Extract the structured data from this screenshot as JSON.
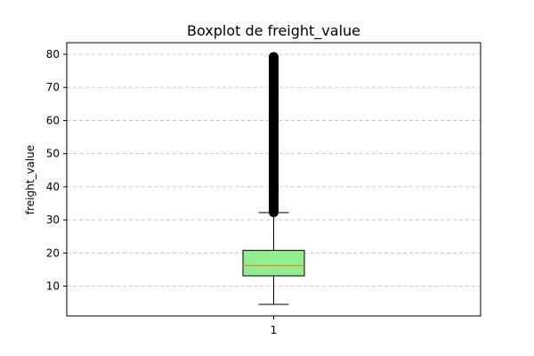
{
  "chart_data": {
    "type": "boxplot",
    "title": "Boxplot de freight_value",
    "xlabel": "",
    "ylabel": "freight_value",
    "categories": [
      "1"
    ],
    "ylim": [
      1.0,
      83.5
    ],
    "yticks": [
      10,
      20,
      30,
      40,
      50,
      60,
      70,
      80
    ],
    "grid": {
      "y": true,
      "x": false,
      "style": "dashed"
    },
    "box": {
      "whisker_low": 4.5,
      "q1": 13.1,
      "median": 16.2,
      "q3": 20.8,
      "whisker_high": 32.2,
      "fliers_min": 32.3,
      "fliers_max": 79.2
    },
    "colors": {
      "box_fill": "#90ee90",
      "median": "#ff7f0e",
      "flier": "#000000",
      "grid": "#bbbbbb"
    }
  }
}
